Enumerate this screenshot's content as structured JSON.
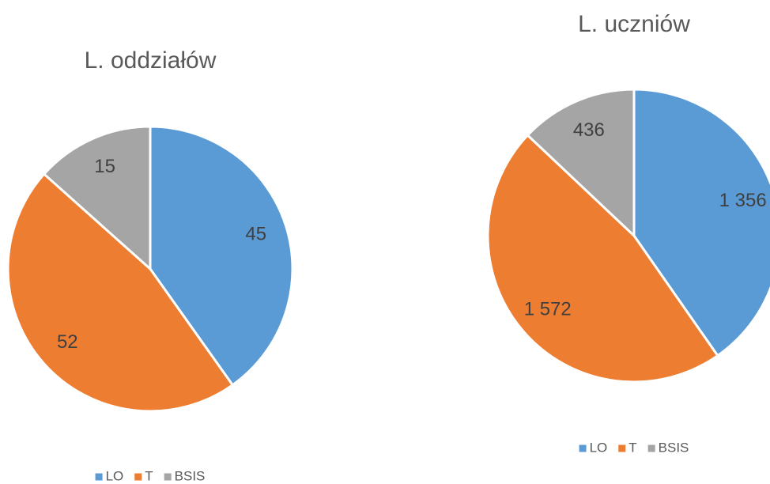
{
  "chart_data": [
    {
      "type": "pie",
      "title": "L. oddziałów",
      "categories": [
        "LO",
        "T",
        "BSIS"
      ],
      "values": [
        45,
        52,
        15
      ],
      "colors": [
        "#5b9bd5",
        "#ed7d31",
        "#a5a5a5"
      ],
      "legend": "bottom"
    },
    {
      "type": "pie",
      "title": "L. uczniów",
      "categories": [
        "LO",
        "T",
        "BSIS"
      ],
      "values": [
        1356,
        1572,
        436
      ],
      "value_labels": [
        "1 356",
        "1 572",
        "436"
      ],
      "colors": [
        "#5b9bd5",
        "#ed7d31",
        "#a5a5a5"
      ],
      "legend": "bottom"
    }
  ]
}
